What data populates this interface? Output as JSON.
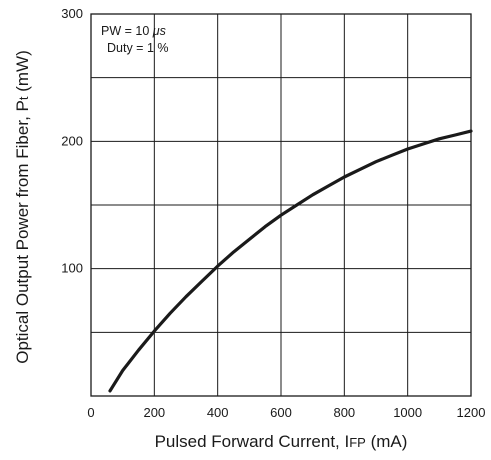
{
  "chart_data": {
    "type": "line",
    "x_axis": {
      "label_main": "Pulsed Forward Current, I",
      "label_sub": "FP",
      "label_unit": " (mA)",
      "range": [
        0,
        1200
      ],
      "ticks": [
        0,
        200,
        400,
        600,
        800,
        1000,
        1200
      ],
      "tick_labels": [
        "0",
        "200",
        "400",
        "600",
        "800",
        "1000",
        "1200"
      ],
      "grid_step": 200
    },
    "y_axis": {
      "label_main": "Optical Output Power from Fiber, P",
      "label_sub": "t",
      "label_unit": " (mW)",
      "range": [
        0,
        300
      ],
      "labeled_ticks": [
        100,
        200,
        300
      ],
      "tick_labels": [
        "100",
        "200",
        "300"
      ],
      "grid_step": 50
    },
    "grid": true,
    "annotation": {
      "line1_prefix": "PW = 10 ",
      "line1_unit": "μs",
      "line2": "Duty = 1 %"
    },
    "series": [
      {
        "x": [
          60,
          100,
          150,
          200,
          250,
          300,
          350,
          400,
          450,
          500,
          550,
          600,
          650,
          700,
          750,
          800,
          850,
          900,
          950,
          1000,
          1050,
          1100,
          1150,
          1200
        ],
        "y": [
          4,
          20,
          36,
          51,
          65,
          78,
          90,
          102,
          113,
          123,
          133,
          142,
          150,
          158,
          165,
          172,
          178,
          184,
          189,
          194,
          198,
          202,
          205,
          208
        ]
      }
    ]
  }
}
